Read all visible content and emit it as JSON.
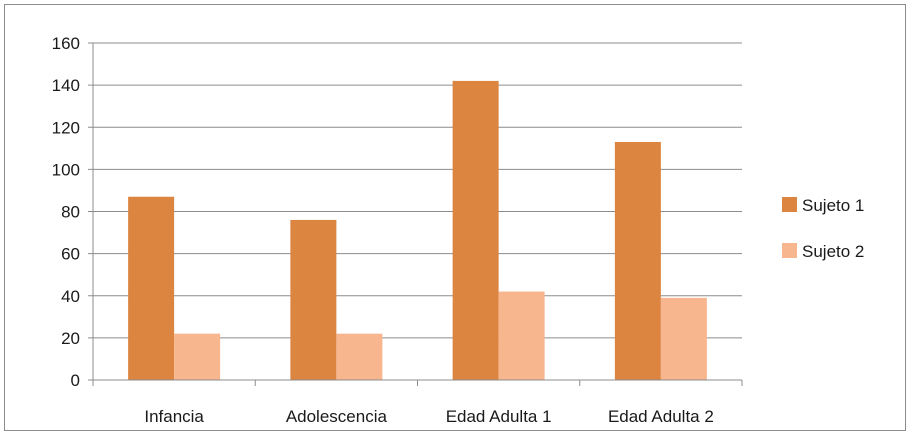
{
  "chart_data": {
    "type": "bar",
    "categories": [
      "Infancia",
      "Adolescencia",
      "Edad Adulta 1",
      "Edad Adulta 2"
    ],
    "series": [
      {
        "name": "Sujeto 1",
        "values": [
          87,
          76,
          142,
          113
        ],
        "color": "#dc8540"
      },
      {
        "name": "Sujeto 2",
        "values": [
          22,
          22,
          42,
          39
        ],
        "color": "#f8b68f"
      }
    ],
    "ylim": [
      0,
      160
    ],
    "yticks": [
      0,
      20,
      40,
      60,
      80,
      100,
      120,
      140,
      160
    ],
    "grid": true,
    "legend_position": "right"
  }
}
